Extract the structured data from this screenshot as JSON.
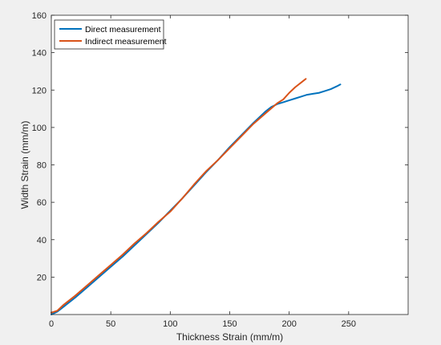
{
  "chart_data": {
    "type": "line",
    "title": "",
    "xlabel": "Thickness Strain (mm/m)",
    "ylabel": "Width Strain (mm/m)",
    "xlim": [
      0,
      300
    ],
    "ylim": [
      0,
      160
    ],
    "xticks": [
      0,
      50,
      100,
      150,
      200,
      250
    ],
    "yticks": [
      20,
      40,
      60,
      80,
      100,
      120,
      140,
      160
    ],
    "grid": false,
    "legend_position": "top-left",
    "series": [
      {
        "name": "Direct measurement",
        "color": "#0072BD",
        "x": [
          0,
          5,
          10,
          20,
          30,
          40,
          50,
          60,
          70,
          80,
          90,
          100,
          110,
          120,
          130,
          140,
          150,
          160,
          170,
          180,
          185,
          190,
          195,
          200,
          205,
          210,
          215,
          220,
          225,
          230,
          235,
          240,
          243
        ],
        "y": [
          0,
          1.5,
          4,
          9,
          14.5,
          20,
          25.5,
          31,
          37,
          43,
          49,
          55.5,
          62,
          69,
          76,
          82.5,
          89.5,
          96,
          102.5,
          108.5,
          111,
          112.5,
          113.5,
          114.5,
          115.5,
          116.5,
          117.5,
          118,
          118.5,
          119.5,
          120.5,
          122,
          123
        ]
      },
      {
        "name": "Indirect measurement",
        "color": "#D95319",
        "x": [
          0,
          5,
          10,
          20,
          30,
          40,
          50,
          60,
          70,
          80,
          90,
          100,
          110,
          120,
          130,
          140,
          150,
          160,
          170,
          180,
          190,
          195,
          200,
          205,
          210,
          214
        ],
        "y": [
          1,
          2,
          5,
          10,
          15.5,
          21,
          26.5,
          32,
          38,
          43.5,
          49.5,
          55,
          62,
          69.5,
          76.5,
          82.5,
          89,
          95.5,
          102,
          107.5,
          113,
          115,
          118.5,
          121.5,
          124,
          126
        ]
      }
    ]
  }
}
